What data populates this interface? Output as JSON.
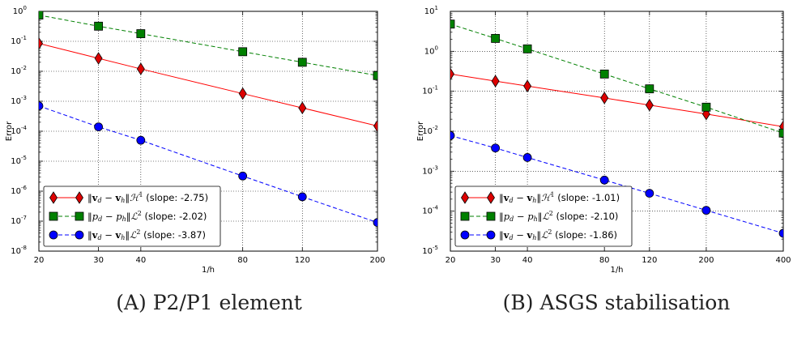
{
  "chart_data": [
    {
      "type": "line",
      "panel": "A",
      "caption": "(A) P2/P1 element",
      "xlabel": "1/h",
      "ylabel": "Error",
      "xscale": "log",
      "yscale": "log",
      "xlim": [
        20,
        200
      ],
      "ylim": [
        1e-08,
        1
      ],
      "xticks": [
        20,
        30,
        40,
        80,
        120,
        200
      ],
      "xtick_labels": [
        "20",
        "30",
        "40",
        "80",
        "120",
        "200"
      ],
      "yticks_exp": [
        -8,
        -7,
        -6,
        -5,
        -4,
        -3,
        -2,
        -1,
        0
      ],
      "grid": true,
      "legend_position": "bottom-left",
      "x": [
        20,
        30,
        40,
        80,
        120,
        200
      ],
      "series": [
        {
          "marker": "diamond",
          "line": "solid",
          "color": "#ff0000",
          "marker_color": "#dd0000",
          "values": [
            0.085,
            0.027,
            0.012,
            0.0018,
            0.0006,
            0.00015
          ],
          "legend_slope": "(slope: -2.75)",
          "norm": "H1",
          "quantity": "v"
        },
        {
          "marker": "square",
          "line": "dashed",
          "color": "#008000",
          "marker_color": "#008000",
          "values": [
            0.75,
            0.32,
            0.18,
            0.045,
            0.02,
            0.0072
          ],
          "legend_slope": "(slope: -2.02)",
          "norm": "L2",
          "quantity": "p"
        },
        {
          "marker": "circle",
          "line": "dashed",
          "color": "#0000ff",
          "marker_color": "#0000ff",
          "values": [
            0.0007,
            0.00014,
            5e-05,
            3.2e-06,
            6.5e-07,
            9e-08
          ],
          "legend_slope": "(slope: -3.87)",
          "norm": "L2",
          "quantity": "v"
        }
      ]
    },
    {
      "type": "line",
      "panel": "B",
      "caption": "(B) ASGS stabilisation",
      "xlabel": "1/h",
      "ylabel": "Error",
      "xscale": "log",
      "yscale": "log",
      "xlim": [
        20,
        400
      ],
      "ylim": [
        1e-05,
        10
      ],
      "xticks": [
        20,
        30,
        40,
        80,
        120,
        200,
        400
      ],
      "xtick_labels": [
        "20",
        "30",
        "40",
        "80",
        "120",
        "200",
        "400"
      ],
      "yticks_exp": [
        -5,
        -4,
        -3,
        -2,
        -1,
        0,
        1
      ],
      "grid": true,
      "legend_position": "bottom-left",
      "x": [
        20,
        30,
        40,
        80,
        120,
        200,
        400
      ],
      "series": [
        {
          "marker": "diamond",
          "line": "solid",
          "color": "#ff0000",
          "marker_color": "#dd0000",
          "values": [
            0.27,
            0.18,
            0.135,
            0.068,
            0.045,
            0.027,
            0.013
          ],
          "legend_slope": "(slope: -1.01)",
          "norm": "H1",
          "quantity": "v"
        },
        {
          "marker": "square",
          "line": "dashed",
          "color": "#008000",
          "marker_color": "#008000",
          "values": [
            4.8,
            2.1,
            1.15,
            0.27,
            0.115,
            0.04,
            0.009
          ],
          "legend_slope": "(slope: -2.10)",
          "norm": "L2",
          "quantity": "p"
        },
        {
          "marker": "circle",
          "line": "dashed",
          "color": "#0000ff",
          "marker_color": "#0000ff",
          "values": [
            0.0078,
            0.0038,
            0.0022,
            0.0006,
            0.00028,
            0.000105,
            2.8e-05
          ],
          "legend_slope": "(slope: -1.86)",
          "norm": "L2",
          "quantity": "v"
        }
      ]
    }
  ]
}
